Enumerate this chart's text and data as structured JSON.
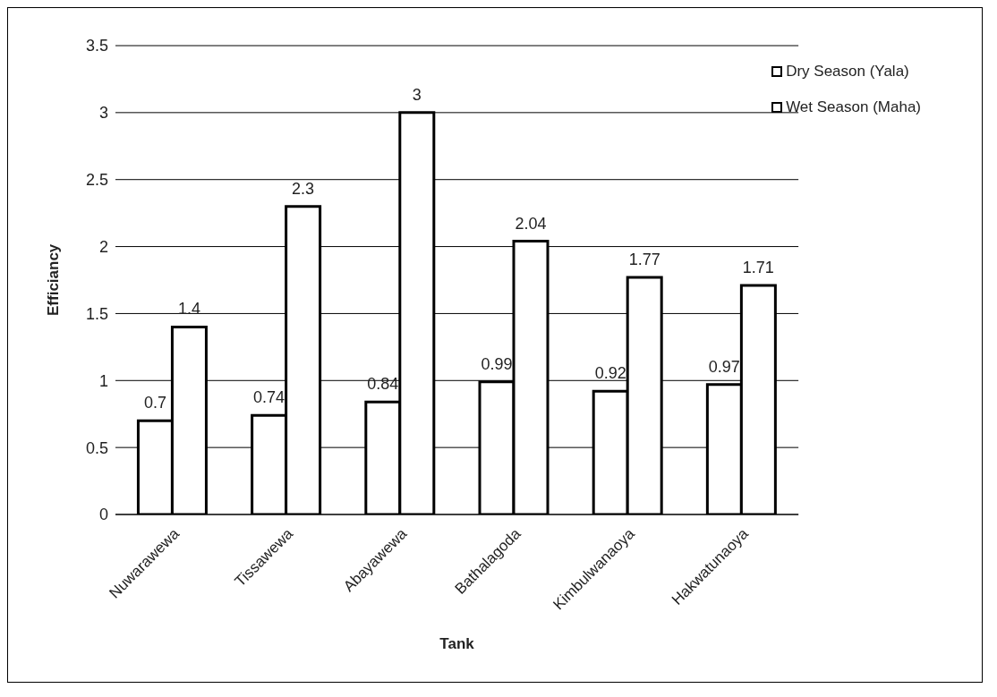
{
  "chart_data": {
    "type": "bar",
    "xlabel": "Tank",
    "ylabel": "Efficiancy",
    "categories": [
      "Nuwarawewa",
      "Tissawewa",
      "Abayawewa",
      "Bathalagoda",
      "Kimbulwanaoya",
      "Hakwatunaoya"
    ],
    "series": [
      {
        "name": "Dry Season (Yala)",
        "color": "#ffffff",
        "values": [
          0.7,
          0.74,
          0.84,
          0.99,
          0.92,
          0.97
        ]
      },
      {
        "name": "Wet Season (Maha)",
        "color": "#ffffff",
        "values": [
          1.4,
          2.3,
          3,
          2.04,
          1.77,
          1.71
        ]
      }
    ],
    "ylim": [
      0,
      3.5
    ],
    "yticks": [
      0,
      0.5,
      1,
      1.5,
      2,
      2.5,
      3,
      3.5
    ],
    "grid": "y",
    "legend": "top right",
    "data_labels": true
  }
}
